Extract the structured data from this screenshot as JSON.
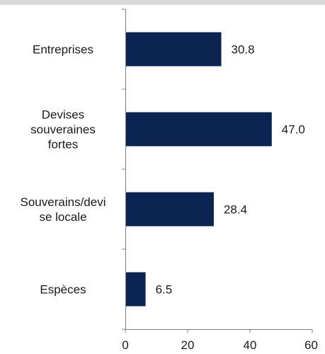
{
  "chart_data": {
    "type": "bar",
    "orientation": "horizontal",
    "categories": [
      [
        "Entreprises"
      ],
      [
        "Devises",
        "souveraines",
        "fortes"
      ],
      [
        "Souverains/devi",
        "se locale"
      ],
      [
        "Espèces"
      ]
    ],
    "values": [
      30.8,
      47.0,
      28.4,
      6.5
    ],
    "value_labels": [
      "30.8",
      "47.0",
      "28.4",
      "6.5"
    ],
    "xlim": [
      0,
      60
    ],
    "xticks": [
      0,
      20,
      40,
      60
    ],
    "xtick_labels": [
      "0",
      "20",
      "40",
      "60"
    ],
    "grid": false,
    "bar_color": "#0b2452",
    "axis_color": "#808080",
    "top_band_color": "#d9d9d9"
  }
}
